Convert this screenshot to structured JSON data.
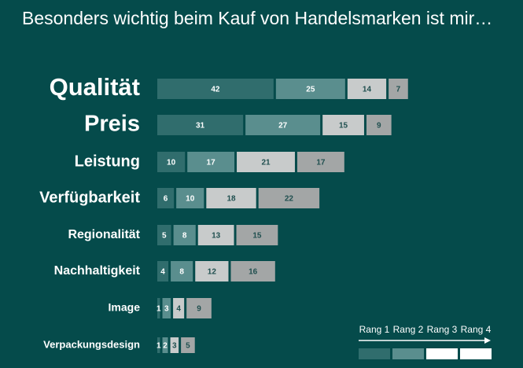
{
  "chart_data": {
    "type": "bar",
    "orientation": "horizontal",
    "stacked": true,
    "title": "Besonders wichtig beim Kauf von Handelsmarken ist mir…",
    "categories": [
      "Qualität",
      "Preis",
      "Leistung",
      "Verfügbarkeit",
      "Regionalität",
      "Nachhaltigkeit",
      "Image",
      "Verpackungsdesign"
    ],
    "series": [
      {
        "name": "Rang 1",
        "color": "#306d6d",
        "values": [
          42,
          31,
          10,
          6,
          5,
          4,
          1,
          1
        ]
      },
      {
        "name": "Rang 2",
        "color": "#5a8e8e",
        "values": [
          25,
          27,
          17,
          10,
          8,
          8,
          3,
          2
        ]
      },
      {
        "name": "Rang 3",
        "color": "#c8cbcb",
        "values": [
          14,
          15,
          21,
          18,
          13,
          12,
          4,
          3
        ]
      },
      {
        "name": "Rang 4",
        "color": "#a3a6a6",
        "values": [
          7,
          9,
          17,
          22,
          15,
          16,
          9,
          5
        ]
      }
    ],
    "legend_position": "bottom-right",
    "grid": false
  }
}
